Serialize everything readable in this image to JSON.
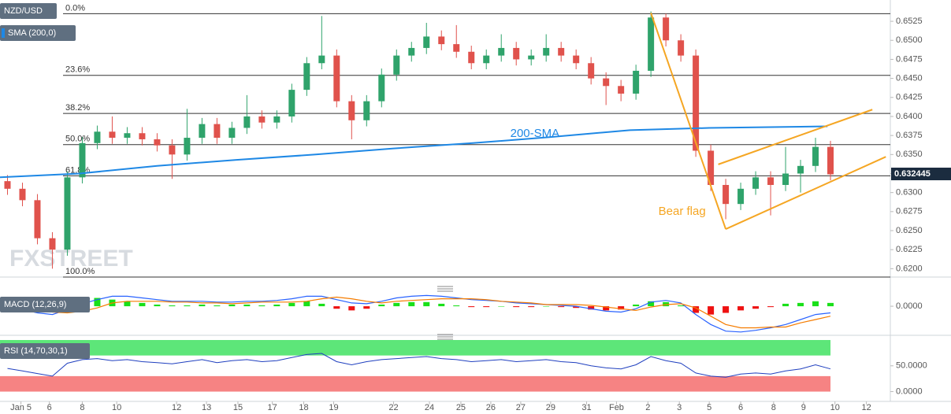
{
  "chart_data": [
    {
      "type": "candlestick",
      "title": "NZD/USD",
      "x": [
        0.5,
        1.5,
        2.5,
        3.5,
        4.5,
        5.5,
        6.5,
        7.5,
        8.5,
        9.5,
        10.5,
        11.5,
        12.5,
        13.5,
        14.5,
        15.5,
        16.5,
        17.5,
        18.5,
        19.5,
        20.5,
        21.5,
        22.5,
        23.5,
        24.5,
        25.5,
        26.5,
        27.5,
        28.5,
        29.5,
        30.5,
        31.5,
        32.5,
        33.5,
        34.5,
        35.5,
        36.5,
        37.5,
        38.5,
        39.5,
        40.5,
        41.5,
        42.5,
        43.5,
        44.5,
        45.5,
        46.5,
        47.5,
        48.5,
        49.5,
        50.5,
        51.5,
        52.5,
        53.5,
        54.5,
        55.5
      ],
      "open": [
        0.6315,
        0.6305,
        0.629,
        0.624,
        0.6225,
        0.632,
        0.6365,
        0.638,
        0.6372,
        0.6378,
        0.637,
        0.6362,
        0.635,
        0.6372,
        0.639,
        0.6372,
        0.6385,
        0.64,
        0.6392,
        0.64,
        0.6435,
        0.647,
        0.648,
        0.642,
        0.6395,
        0.642,
        0.6455,
        0.648,
        0.649,
        0.6505,
        0.6495,
        0.6485,
        0.647,
        0.648,
        0.649,
        0.6475,
        0.648,
        0.649,
        0.648,
        0.647,
        0.645,
        0.644,
        0.643,
        0.646,
        0.653,
        0.65,
        0.648,
        0.6355,
        0.631,
        0.6285,
        0.6305,
        0.632,
        0.631,
        0.6325,
        0.6335,
        0.636
      ],
      "high": [
        0.6323,
        0.6313,
        0.6298,
        0.6248,
        0.6328,
        0.6373,
        0.6388,
        0.64,
        0.6386,
        0.6386,
        0.6378,
        0.637,
        0.641,
        0.6398,
        0.6398,
        0.6393,
        0.6428,
        0.6408,
        0.6408,
        0.6443,
        0.6478,
        0.6532,
        0.6488,
        0.6428,
        0.6428,
        0.6463,
        0.6488,
        0.6498,
        0.6523,
        0.6513,
        0.652,
        0.6493,
        0.6488,
        0.6508,
        0.6498,
        0.6488,
        0.6508,
        0.6498,
        0.6488,
        0.6478,
        0.6458,
        0.6448,
        0.6468,
        0.6538,
        0.6535,
        0.6508,
        0.6488,
        0.6363,
        0.6318,
        0.6313,
        0.6328,
        0.6328,
        0.636,
        0.6343,
        0.6372,
        0.6368
      ],
      "low": [
        0.6297,
        0.6282,
        0.6232,
        0.62,
        0.6217,
        0.6312,
        0.6357,
        0.6364,
        0.6364,
        0.6362,
        0.6354,
        0.6318,
        0.6342,
        0.6364,
        0.6364,
        0.6364,
        0.6377,
        0.6384,
        0.6384,
        0.6392,
        0.6427,
        0.6462,
        0.6412,
        0.637,
        0.6387,
        0.6412,
        0.6447,
        0.6472,
        0.6482,
        0.6487,
        0.6477,
        0.6462,
        0.6462,
        0.6472,
        0.6467,
        0.6467,
        0.6472,
        0.6472,
        0.6462,
        0.6442,
        0.6415,
        0.642,
        0.6422,
        0.6452,
        0.6492,
        0.6472,
        0.6347,
        0.6302,
        0.6265,
        0.6277,
        0.6297,
        0.627,
        0.6302,
        0.63,
        0.6327,
        0.6316
      ],
      "close": [
        0.6305,
        0.629,
        0.624,
        0.6225,
        0.632,
        0.6365,
        0.638,
        0.6372,
        0.6378,
        0.637,
        0.6362,
        0.635,
        0.6372,
        0.639,
        0.6372,
        0.6385,
        0.64,
        0.6392,
        0.64,
        0.6435,
        0.647,
        0.648,
        0.642,
        0.6395,
        0.642,
        0.6455,
        0.648,
        0.649,
        0.6505,
        0.6495,
        0.6485,
        0.647,
        0.648,
        0.649,
        0.6475,
        0.648,
        0.649,
        0.648,
        0.647,
        0.645,
        0.644,
        0.643,
        0.646,
        0.653,
        0.65,
        0.648,
        0.6355,
        0.631,
        0.6285,
        0.6305,
        0.632,
        0.631,
        0.6325,
        0.6335,
        0.636,
        0.6324
      ],
      "up_color": "#2fa36b",
      "down_color": "#e0524c",
      "sma": {
        "name": "SMA (200,0)",
        "color": "#1e88e5",
        "x": [
          0,
          5.3,
          10.5,
          15.8,
          21.1,
          26.3,
          31.6,
          36.8,
          42.1,
          47.4,
          55.3
        ],
        "values": [
          0.632,
          0.6325,
          0.6335,
          0.6343,
          0.635,
          0.6358,
          0.6365,
          0.6373,
          0.6382,
          0.6385,
          0.6387
        ]
      },
      "fib_levels": [
        {
          "label": "0.0%",
          "value": 0.6535
        },
        {
          "label": "23.6%",
          "value": 0.6454
        },
        {
          "label": "38.2%",
          "value": 0.6404
        },
        {
          "label": "50.0%",
          "value": 0.6363
        },
        {
          "label": "61.8%",
          "value": 0.6322
        },
        {
          "label": "100.0%",
          "value": 0.6189
        }
      ],
      "trend_lines": [
        {
          "x": [
            43.5,
            48.5
          ],
          "y": [
            0.6536,
            0.6252
          ]
        },
        {
          "x": [
            48.0,
            58.3
          ],
          "y": [
            0.6337,
            0.6409
          ]
        },
        {
          "x": [
            48.5,
            59.2
          ],
          "y": [
            0.6252,
            0.6347
          ]
        }
      ],
      "trend_color": "#f5a623",
      "annotations": [
        {
          "text": "200-SMA",
          "x": 34.1,
          "y": 0.6377,
          "color": "#1e88e5"
        },
        {
          "text": "Bear flag",
          "x": 44.0,
          "y": 0.6275,
          "color": "#f5a623"
        }
      ],
      "watermark": "FXSTREET",
      "last_price": 0.632445,
      "xlim": [
        0,
        59.5
      ],
      "ylim": [
        0.6189,
        0.6553
      ],
      "yticks": [
        {
          "value": 0.62,
          "label": "0.6200"
        },
        {
          "value": 0.6225,
          "label": "0.6225"
        },
        {
          "value": 0.625,
          "label": "0.6250"
        },
        {
          "value": 0.6275,
          "label": "0.6275"
        },
        {
          "value": 0.63,
          "label": "0.6300"
        },
        {
          "value": 0.6325,
          "label": "0.6325"
        },
        {
          "value": 0.635,
          "label": "0.6350"
        },
        {
          "value": 0.6375,
          "label": "0.6375"
        },
        {
          "value": 0.64,
          "label": "0.6400"
        },
        {
          "value": 0.6425,
          "label": "0.6425"
        },
        {
          "value": 0.645,
          "label": "0.6450"
        },
        {
          "value": 0.6475,
          "label": "0.6475"
        },
        {
          "value": 0.65,
          "label": "0.6500"
        },
        {
          "value": 0.6525,
          "label": "0.6525"
        }
      ],
      "xticks": [
        {
          "value": 1.4,
          "label": "Jan 5"
        },
        {
          "value": 3.3,
          "label": "6"
        },
        {
          "value": 5.5,
          "label": "8"
        },
        {
          "value": 7.8,
          "label": "10"
        },
        {
          "value": 11.8,
          "label": "12"
        },
        {
          "value": 13.8,
          "label": "13"
        },
        {
          "value": 15.9,
          "label": "15"
        },
        {
          "value": 18.2,
          "label": "17"
        },
        {
          "value": 20.3,
          "label": "18"
        },
        {
          "value": 22.3,
          "label": "19"
        },
        {
          "value": 26.3,
          "label": "22"
        },
        {
          "value": 28.7,
          "label": "24"
        },
        {
          "value": 30.8,
          "label": "25"
        },
        {
          "value": 32.8,
          "label": "26"
        },
        {
          "value": 34.8,
          "label": "27"
        },
        {
          "value": 36.8,
          "label": "29"
        },
        {
          "value": 39.2,
          "label": "31"
        },
        {
          "value": 41.2,
          "label": "Feb"
        },
        {
          "value": 43.3,
          "label": "2"
        },
        {
          "value": 45.4,
          "label": "3"
        },
        {
          "value": 47.4,
          "label": "5"
        },
        {
          "value": 49.5,
          "label": "6"
        },
        {
          "value": 51.7,
          "label": "8"
        },
        {
          "value": 53.7,
          "label": "9"
        },
        {
          "value": 55.8,
          "label": "10"
        },
        {
          "value": 57.9,
          "label": "12"
        }
      ]
    },
    {
      "type": "macd",
      "title": "MACD (12,26,9)",
      "histogram": [
        -0.0003,
        -0.0004,
        -0.0005,
        -0.0003,
        0.0004,
        0.0009,
        0.001,
        0.0008,
        0.0006,
        0.0004,
        0.0002,
        0.0001,
        0.0001,
        0.0002,
        0.0001,
        0.0002,
        0.0002,
        0.0001,
        0.0002,
        0.0004,
        0.0006,
        0.0003,
        -0.0003,
        -0.0005,
        -0.0003,
        0.0002,
        0.0004,
        0.0005,
        0.0005,
        0.0003,
        0.0001,
        -0.0001,
        -0.0001,
        0.0,
        -0.0001,
        -0.0001,
        0.0,
        -0.0001,
        -0.0002,
        -0.0004,
        -0.0005,
        -0.0004,
        0.0002,
        0.0006,
        0.0005,
        0.0001,
        -0.0008,
        -0.001,
        -0.0008,
        -0.0005,
        -0.0003,
        -0.0001,
        0.0003,
        0.0004,
        0.0006,
        0.0004
      ],
      "macd": [
        -0.0002,
        -0.0004,
        -0.0008,
        -0.001,
        -0.0004,
        0.0003,
        0.0008,
        0.0012,
        0.0012,
        0.001,
        0.0008,
        0.0006,
        0.0006,
        0.0006,
        0.0005,
        0.0005,
        0.0006,
        0.0006,
        0.0007,
        0.0009,
        0.0012,
        0.0012,
        0.0008,
        0.0004,
        0.0003,
        0.0006,
        0.001,
        0.0012,
        0.0013,
        0.0012,
        0.001,
        0.0008,
        0.0007,
        0.0006,
        0.0004,
        0.0003,
        0.0002,
        0.0001,
        0.0,
        -0.0003,
        -0.0006,
        -0.0007,
        -0.0003,
        0.0005,
        0.0007,
        0.0004,
        -0.001,
        -0.0022,
        -0.003,
        -0.0031,
        -0.0029,
        -0.0026,
        -0.0022,
        -0.0016,
        -0.001,
        -0.0008
      ],
      "signal": [
        0.0001,
        0.0,
        -0.0003,
        -0.0007,
        -0.0008,
        -0.0006,
        -0.0002,
        0.0004,
        0.0006,
        0.0006,
        0.0006,
        0.0005,
        0.0005,
        0.0004,
        0.0004,
        0.0003,
        0.0004,
        0.0005,
        0.0005,
        0.0005,
        0.0006,
        0.0009,
        0.0011,
        0.0009,
        0.0006,
        0.0004,
        0.0006,
        0.0007,
        0.0008,
        0.0009,
        0.0009,
        0.0009,
        0.0008,
        0.0006,
        0.0005,
        0.0004,
        0.0002,
        0.0002,
        0.0002,
        0.0001,
        -0.0001,
        -0.0003,
        -0.0005,
        -0.0001,
        0.0002,
        0.0003,
        -0.0002,
        -0.0012,
        -0.0022,
        -0.0026,
        -0.0026,
        -0.0025,
        -0.0025,
        -0.002,
        -0.0016,
        -0.0012
      ],
      "pos_color": "#19e019",
      "neg_color": "#ee1111",
      "macd_color": "#2962ff",
      "signal_color": "#f57c00",
      "ylim": [
        -0.0035,
        0.002
      ],
      "yticks": [
        {
          "value": 0,
          "label": "0.0000"
        }
      ]
    },
    {
      "type": "line",
      "title": "RSI (14,70,30,1)",
      "values": [
        45,
        40,
        35,
        30,
        55,
        62,
        64,
        60,
        62,
        58,
        56,
        54,
        58,
        62,
        56,
        60,
        62,
        58,
        60,
        66,
        72,
        74,
        58,
        52,
        58,
        62,
        64,
        66,
        68,
        64,
        62,
        58,
        60,
        62,
        58,
        60,
        62,
        58,
        56,
        50,
        46,
        44,
        52,
        68,
        60,
        55,
        36,
        30,
        28,
        34,
        36,
        34,
        40,
        44,
        52,
        44
      ],
      "color": "#1f3fbf",
      "bands": [
        {
          "from": 70,
          "to": 100,
          "color": "#4be36a"
        },
        {
          "from": 0,
          "to": 30,
          "color": "#f57676"
        }
      ],
      "ylim": [
        -19,
        100
      ],
      "yticks": [
        {
          "value": 50,
          "label": "50.0000"
        },
        {
          "value": 0,
          "label": "0.0000"
        }
      ]
    }
  ]
}
